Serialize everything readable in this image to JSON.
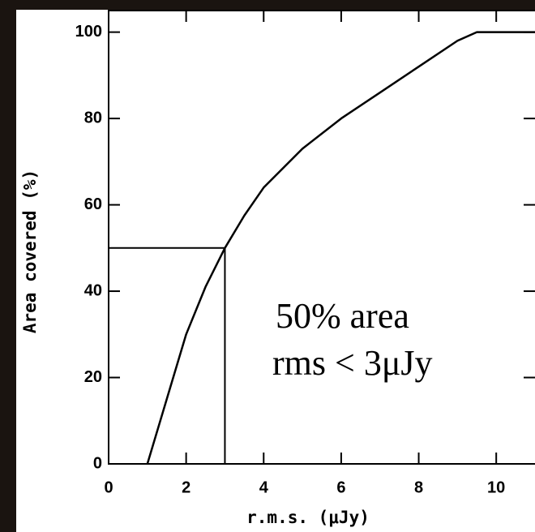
{
  "chart_data": {
    "type": "line",
    "xlabel": "r.m.s. (μJy)",
    "ylabel": "Area covered (%)",
    "x": [
      1.0,
      1.5,
      2.0,
      2.5,
      3.0,
      3.5,
      4.0,
      5.0,
      6.0,
      7.0,
      8.0,
      9.0,
      9.5,
      10.0,
      11.0
    ],
    "series": [
      {
        "color": "#000000",
        "values": [
          0,
          15,
          30,
          41,
          50,
          57.5,
          64,
          73,
          80,
          86,
          92,
          98,
          100,
          100,
          100
        ]
      }
    ],
    "xlim": [
      0,
      11
    ],
    "ylim": [
      0,
      105
    ],
    "xticks": [
      0,
      2,
      4,
      6,
      8,
      10
    ],
    "yticks": [
      0,
      20,
      40,
      60,
      80,
      100
    ],
    "reference": {
      "x": 3,
      "y": 50
    },
    "annotation": [
      "50% area",
      "rms < 3μJy"
    ]
  }
}
